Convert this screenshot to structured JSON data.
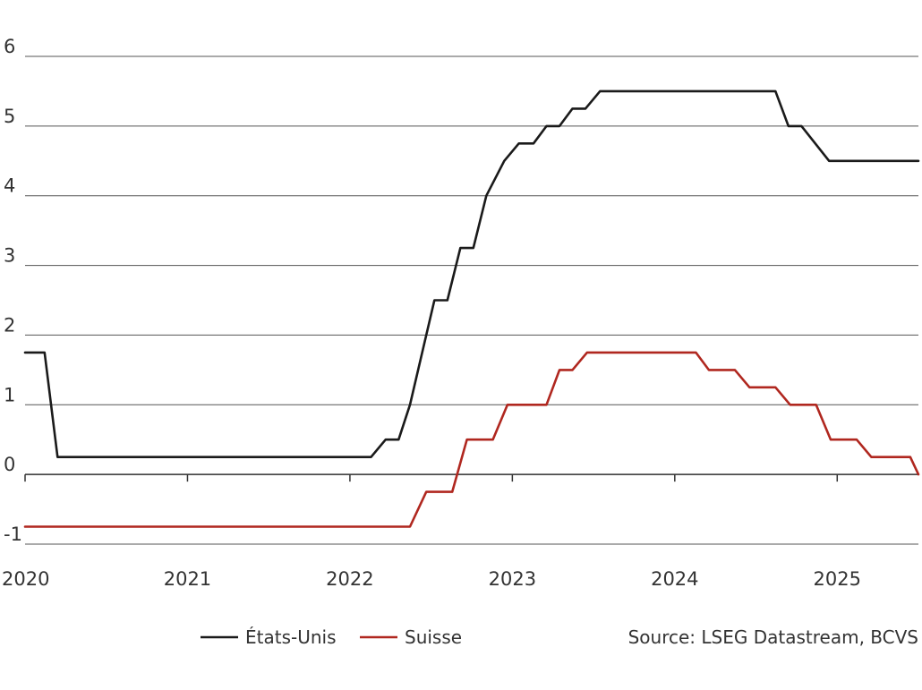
{
  "chart_data": {
    "type": "line",
    "title": "",
    "xlabel": "",
    "ylabel": "",
    "xlim": [
      2020.0,
      2025.5
    ],
    "ylim": [
      -1,
      6
    ],
    "yticks": [
      "-1",
      "0",
      "1",
      "2",
      "3",
      "4",
      "5",
      "6"
    ],
    "xticks": [
      "2020",
      "2021",
      "2022",
      "2023",
      "2024",
      "2025"
    ],
    "grid": "horizontal",
    "legend": "bottom",
    "source": "Source: LSEG Datastream, BCVS",
    "series": [
      {
        "name": "États-Unis",
        "color": "#1a1a1a",
        "points": [
          [
            2020.0,
            1.75
          ],
          [
            2020.12,
            1.75
          ],
          [
            2020.2,
            0.25
          ],
          [
            2022.13,
            0.25
          ],
          [
            2022.22,
            0.5
          ],
          [
            2022.3,
            0.5
          ],
          [
            2022.37,
            1.0
          ],
          [
            2022.47,
            2.0
          ],
          [
            2022.52,
            2.5
          ],
          [
            2022.6,
            2.5
          ],
          [
            2022.68,
            3.25
          ],
          [
            2022.76,
            3.25
          ],
          [
            2022.84,
            4.0
          ],
          [
            2022.95,
            4.5
          ],
          [
            2023.04,
            4.75
          ],
          [
            2023.13,
            4.75
          ],
          [
            2023.21,
            5.0
          ],
          [
            2023.29,
            5.0
          ],
          [
            2023.37,
            5.25
          ],
          [
            2023.45,
            5.25
          ],
          [
            2023.54,
            5.5
          ],
          [
            2024.62,
            5.5
          ],
          [
            2024.7,
            5.0
          ],
          [
            2024.78,
            5.0
          ],
          [
            2024.95,
            4.5
          ],
          [
            2025.5,
            4.5
          ]
        ]
      },
      {
        "name": "Suisse",
        "color": "#b0271f",
        "points": [
          [
            2020.0,
            -0.75
          ],
          [
            2022.37,
            -0.75
          ],
          [
            2022.47,
            -0.25
          ],
          [
            2022.63,
            -0.25
          ],
          [
            2022.72,
            0.5
          ],
          [
            2022.88,
            0.5
          ],
          [
            2022.97,
            1.0
          ],
          [
            2023.21,
            1.0
          ],
          [
            2023.29,
            1.5
          ],
          [
            2023.37,
            1.5
          ],
          [
            2023.46,
            1.75
          ],
          [
            2024.13,
            1.75
          ],
          [
            2024.21,
            1.5
          ],
          [
            2024.37,
            1.5
          ],
          [
            2024.46,
            1.25
          ],
          [
            2024.62,
            1.25
          ],
          [
            2024.71,
            1.0
          ],
          [
            2024.87,
            1.0
          ],
          [
            2024.96,
            0.5
          ],
          [
            2025.12,
            0.5
          ],
          [
            2025.21,
            0.25
          ],
          [
            2025.45,
            0.25
          ],
          [
            2025.5,
            0.0
          ]
        ]
      }
    ]
  }
}
